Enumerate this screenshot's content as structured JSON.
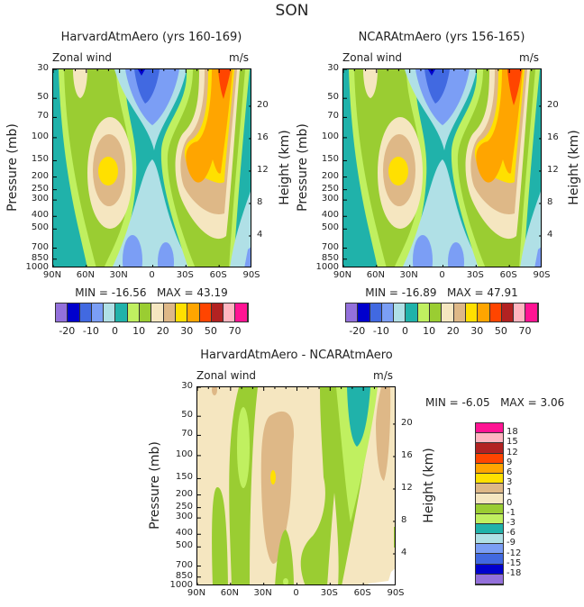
{
  "figure_title": "SON",
  "colors": [
    "#9370DB",
    "#0000CD",
    "#4169E1",
    "#7B9EF5",
    "#B0E0E6",
    "#20B2AA",
    "#C0F060",
    "#9ACD32",
    "#F5E6C0",
    "#DEB887",
    "#FFE000",
    "#FFA500",
    "#FF4500",
    "#B22222",
    "#FFB6C1",
    "#FF1493"
  ],
  "chart_data": [
    {
      "type": "heatmap",
      "subtype": "filled-contour",
      "title": "HarvardAtmAero (yrs 160-169)",
      "left_label": "Zonal wind",
      "right_label": "m/s",
      "xlabel": "",
      "ylabel": "Pressure (mb)",
      "y2label": "Height (km)",
      "x_ticks": [
        "90N",
        "60N",
        "30N",
        "0",
        "30S",
        "60S",
        "90S"
      ],
      "y_ticks": [
        30,
        50,
        70,
        100,
        150,
        200,
        250,
        300,
        400,
        500,
        700,
        850,
        1000
      ],
      "y2_ticks": [
        4,
        8,
        12,
        16,
        20
      ],
      "ylim": [
        1000,
        30
      ],
      "min_label": "MIN =  -16.56",
      "max_label": "MAX =   43.19",
      "levels": [
        -20,
        -15,
        -10,
        -5,
        0,
        5,
        10,
        15,
        20,
        25,
        30,
        40,
        50,
        60,
        70
      ],
      "colorbar_labels": [
        "-20",
        "-10",
        "0",
        "10",
        "20",
        "30",
        "50",
        "70"
      ]
    },
    {
      "type": "heatmap",
      "subtype": "filled-contour",
      "title": "NCARAtmAero (yrs 156-165)",
      "left_label": "Zonal wind",
      "right_label": "m/s",
      "ylabel": "Pressure (mb)",
      "y2label": "Height (km)",
      "x_ticks": [
        "90N",
        "60N",
        "30N",
        "0",
        "30S",
        "60S",
        "90S"
      ],
      "y_ticks": [
        30,
        50,
        70,
        100,
        150,
        200,
        250,
        300,
        400,
        500,
        700,
        850,
        1000
      ],
      "y2_ticks": [
        4,
        8,
        12,
        16,
        20
      ],
      "ylim": [
        1000,
        30
      ],
      "min_label": "MIN =  -16.89",
      "max_label": "MAX =   47.91",
      "levels": [
        -20,
        -15,
        -10,
        -5,
        0,
        5,
        10,
        15,
        20,
        25,
        30,
        40,
        50,
        60,
        70
      ],
      "colorbar_labels": [
        "-20",
        "-10",
        "0",
        "10",
        "20",
        "30",
        "50",
        "70"
      ]
    },
    {
      "type": "heatmap",
      "subtype": "filled-contour",
      "title": "HarvardAtmAero - NCARAtmAero",
      "left_label": "Zonal wind",
      "right_label": "m/s",
      "ylabel": "Pressure (mb)",
      "y2label": "Height (km)",
      "x_ticks": [
        "90N",
        "60N",
        "30N",
        "0",
        "30S",
        "60S",
        "90S"
      ],
      "y_ticks": [
        30,
        50,
        70,
        100,
        150,
        200,
        250,
        300,
        400,
        500,
        700,
        850,
        1000
      ],
      "y2_ticks": [
        4,
        8,
        12,
        16,
        20
      ],
      "ylim": [
        1000,
        30
      ],
      "min_label": "MIN =   -6.05",
      "max_label": "MAX =    3.06",
      "levels": [
        -18,
        -15,
        -12,
        -9,
        -6,
        -3,
        -1,
        0,
        1,
        3,
        6,
        9,
        12,
        15,
        18
      ],
      "colorbar_labels": [
        "18",
        "15",
        "12",
        "9",
        "6",
        "3",
        "1",
        "0",
        "-1",
        "-3",
        "-6",
        "-9",
        "-12",
        "-15",
        "-18"
      ]
    }
  ]
}
